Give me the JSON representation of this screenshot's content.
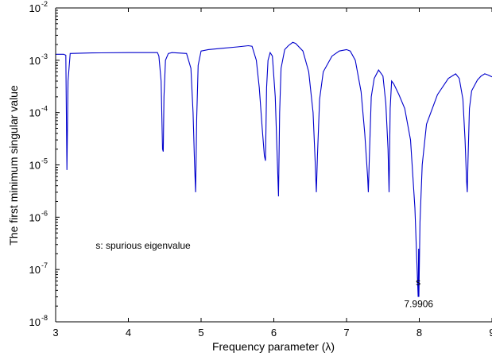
{
  "chart_data": {
    "type": "line",
    "title": "",
    "xlabel": "Frequency parameter (λ)",
    "ylabel": "The first minimum singular value",
    "xlim": [
      3,
      9
    ],
    "ylim": [
      1e-08,
      0.01
    ],
    "yscale": "log",
    "grid": false,
    "x_ticks": [
      3,
      4,
      5,
      6,
      7,
      8,
      9
    ],
    "y_ticks": [
      {
        "value": 1e-08,
        "base": "10",
        "exp": "-8"
      },
      {
        "value": 1e-07,
        "base": "10",
        "exp": "-7"
      },
      {
        "value": 1e-06,
        "base": "10",
        "exp": "-6"
      },
      {
        "value": 1e-05,
        "base": "10",
        "exp": "-5"
      },
      {
        "value": 0.0001,
        "base": "10",
        "exp": "-4"
      },
      {
        "value": 0.001,
        "base": "10",
        "exp": "-3"
      },
      {
        "value": 0.01,
        "base": "10",
        "exp": "-2"
      }
    ],
    "line_color": "#0000cc",
    "series": [
      {
        "x": [
          3.0,
          3.09,
          3.11,
          3.14,
          3.155,
          3.17,
          3.2,
          3.5,
          4.0,
          4.4,
          4.42,
          4.45,
          4.47,
          4.48,
          4.49,
          4.51,
          4.55,
          4.6,
          4.8,
          4.86,
          4.89,
          4.91,
          4.925,
          4.94,
          4.96,
          5.0,
          5.1,
          5.3,
          5.5,
          5.65,
          5.7,
          5.76,
          5.8,
          5.84,
          5.87,
          5.885,
          5.9,
          5.92,
          5.95,
          5.98,
          6.02,
          6.05,
          6.065,
          6.08,
          6.1,
          6.15,
          6.2,
          6.26,
          6.3,
          6.4,
          6.48,
          6.54,
          6.57,
          6.585,
          6.6,
          6.63,
          6.68,
          6.8,
          6.9,
          7.0,
          7.05,
          7.12,
          7.2,
          7.25,
          7.29,
          7.3,
          7.31,
          7.34,
          7.38,
          7.44,
          7.5,
          7.54,
          7.57,
          7.585,
          7.6,
          7.62,
          7.65,
          7.72,
          7.8,
          7.88,
          7.94,
          7.97,
          7.985,
          7.991,
          7.995,
          8.01,
          8.04,
          8.1,
          8.25,
          8.4,
          8.5,
          8.55,
          8.6,
          8.63,
          8.65,
          8.66,
          8.67,
          8.69,
          8.72,
          8.8,
          8.85,
          8.9,
          8.95,
          9.0
        ],
        "y": [
          0.0013,
          0.0013,
          0.0013,
          0.00125,
          8e-06,
          0.0004,
          0.00135,
          0.00138,
          0.0014,
          0.0014,
          0.0012,
          0.0004,
          2e-05,
          1.8e-05,
          0.0002,
          0.001,
          0.00135,
          0.0014,
          0.00135,
          0.0007,
          0.0001,
          1e-05,
          3e-06,
          8e-05,
          0.0008,
          0.0015,
          0.0016,
          0.0017,
          0.0018,
          0.0019,
          0.00185,
          0.001,
          0.0003,
          5e-05,
          1.5e-05,
          1.2e-05,
          0.0003,
          0.001,
          0.0014,
          0.0012,
          0.0002,
          1e-05,
          2.5e-06,
          0.0001,
          0.0007,
          0.0016,
          0.0019,
          0.0022,
          0.0021,
          0.0015,
          0.0006,
          0.0001,
          1e-05,
          3e-06,
          1.5e-05,
          0.00018,
          0.0006,
          0.0012,
          0.0015,
          0.0016,
          0.0015,
          0.001,
          0.00025,
          4e-05,
          6e-06,
          3e-06,
          1e-05,
          0.0002,
          0.00045,
          0.00065,
          0.0005,
          0.00015,
          2e-05,
          3e-06,
          0.00012,
          0.0004,
          0.00035,
          0.00022,
          0.00012,
          3e-05,
          1.5e-06,
          1e-07,
          3e-08,
          2.5e-07,
          3e-08,
          8e-07,
          1e-05,
          6e-05,
          0.00022,
          0.00045,
          0.00055,
          0.00045,
          0.00018,
          3e-05,
          5e-06,
          3e-06,
          1.2e-05,
          0.00012,
          0.00026,
          0.00042,
          0.0005,
          0.00055,
          0.00052,
          0.00048
        ]
      }
    ],
    "annotations": [
      {
        "text": "s: spurious eigenvalue",
        "x": 3.55,
        "y": 2.5e-07
      },
      {
        "text": "s",
        "x": 7.985,
        "y": 5e-08
      },
      {
        "text": "7.9906",
        "x": 7.992,
        "y": 1.9e-08
      }
    ]
  }
}
